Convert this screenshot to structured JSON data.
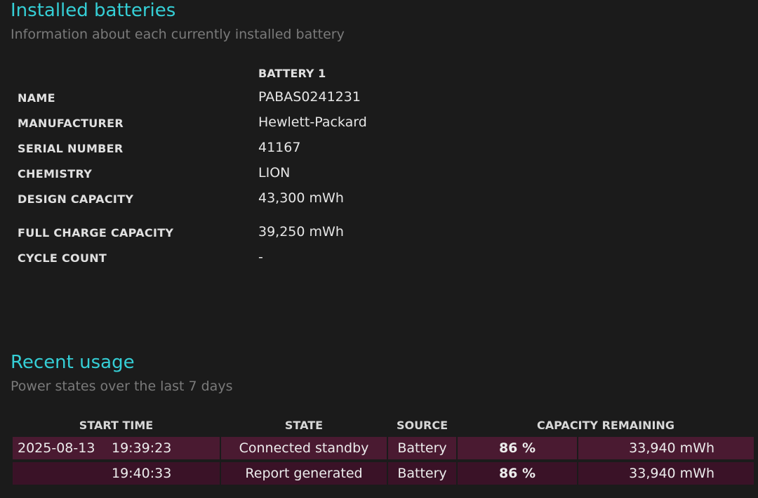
{
  "installed": {
    "title": "Installed batteries",
    "subtitle": "Information about each currently installed battery",
    "battery_header": "BATTERY 1",
    "rows": [
      {
        "label": "NAME",
        "value": "PABAS0241231"
      },
      {
        "label": "MANUFACTURER",
        "value": "Hewlett-Packard"
      },
      {
        "label": "SERIAL NUMBER",
        "value": "41167"
      },
      {
        "label": "CHEMISTRY",
        "value": "LION"
      },
      {
        "label": "DESIGN CAPACITY",
        "value": "43,300 mWh"
      },
      {
        "label": "FULL CHARGE CAPACITY",
        "value": "39,250 mWh"
      },
      {
        "label": "CYCLE COUNT",
        "value": "-"
      }
    ]
  },
  "recent": {
    "title": "Recent usage",
    "subtitle": "Power states over the last 7 days",
    "headers": {
      "start_time": "START TIME",
      "state": "STATE",
      "source": "SOURCE",
      "capacity": "CAPACITY REMAINING"
    },
    "rows": [
      {
        "date": "2025-08-13",
        "time": "19:39:23",
        "state": "Connected standby",
        "source": "Battery",
        "percent": "86 %",
        "mwh": "33,940 mWh"
      },
      {
        "date": "",
        "time": "19:40:33",
        "state": "Report generated",
        "source": "Battery",
        "percent": "86 %",
        "mwh": "33,940 mWh"
      }
    ]
  },
  "colors": {
    "accent": "#35cfd6",
    "row_odd": "#4a1a31",
    "row_even": "#3a1227",
    "background": "#1b1b1b"
  }
}
